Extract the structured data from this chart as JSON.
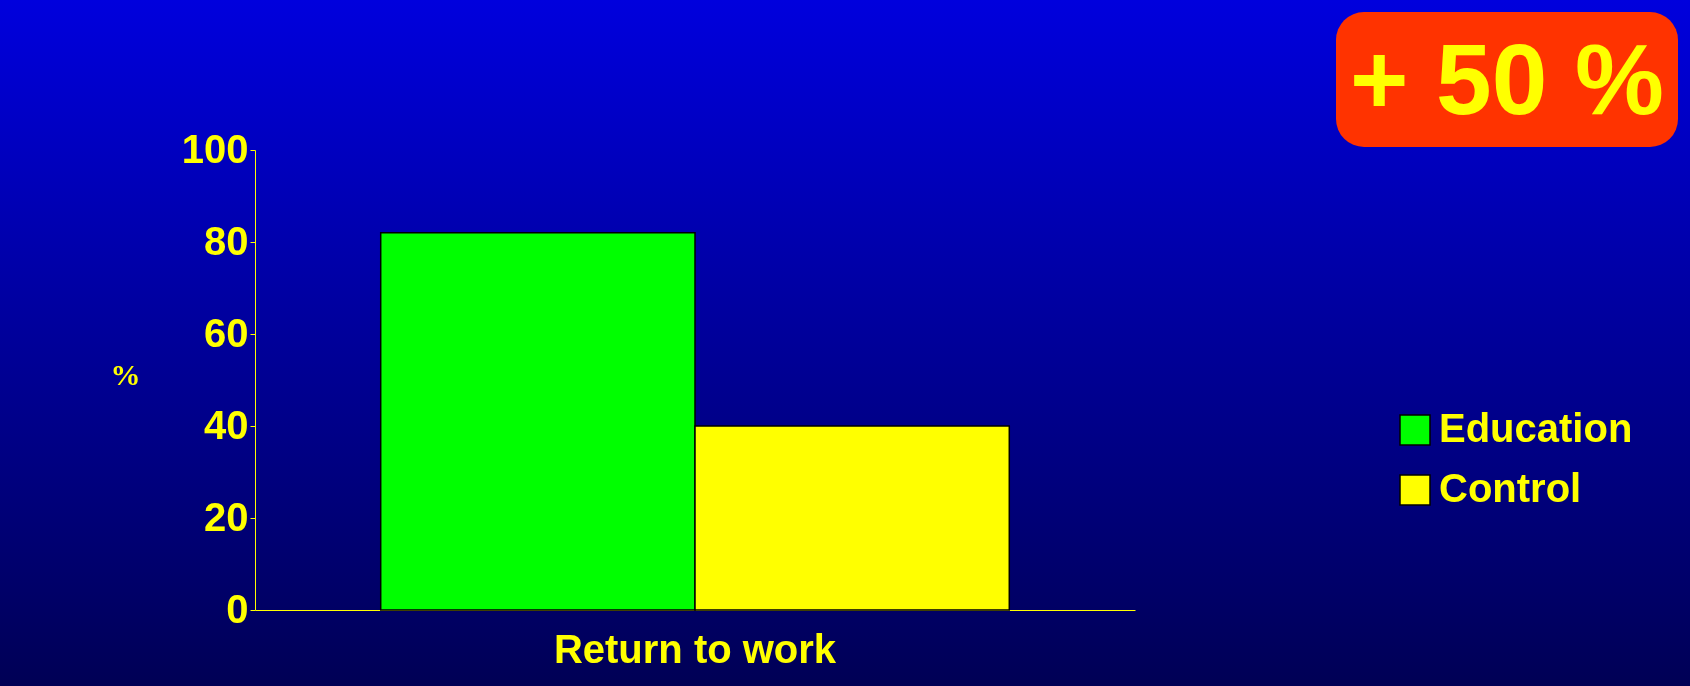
{
  "chart_data": {
    "type": "bar",
    "categories": [
      "Return to work"
    ],
    "ylabel": "%",
    "ylim": [
      0,
      100
    ],
    "yticks": [
      0,
      20,
      40,
      60,
      80,
      100
    ],
    "grid": false,
    "legend": "right",
    "series": [
      {
        "name": "Education",
        "color": "#00ff00",
        "values": [
          82
        ]
      },
      {
        "name": "Control",
        "color": "#ffff00",
        "values": [
          40
        ]
      }
    ],
    "annotations": [
      "+ 50 %"
    ]
  }
}
